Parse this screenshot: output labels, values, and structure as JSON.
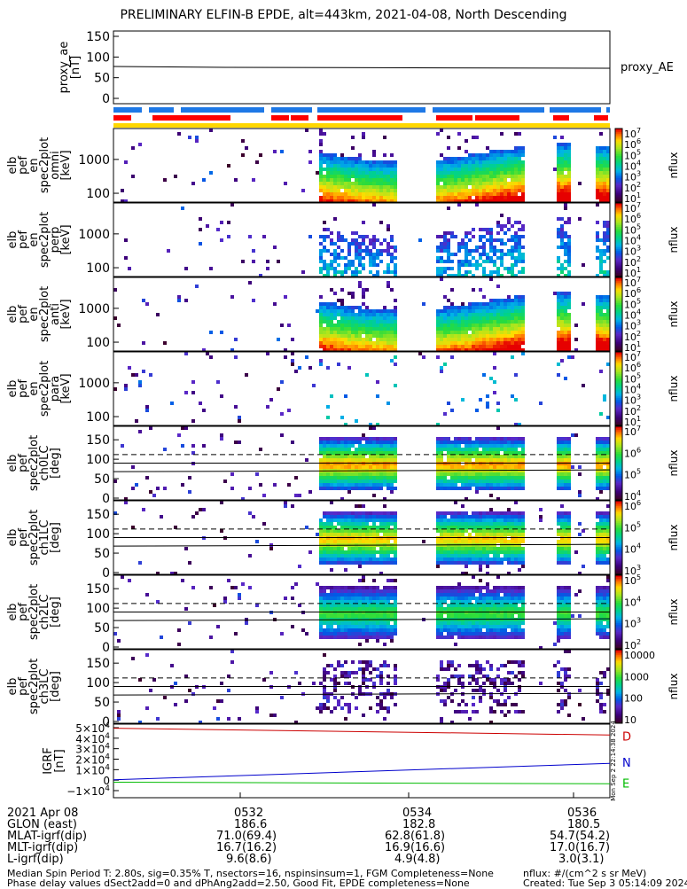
{
  "title": "PRELIMINARY ELFIN-B EPDE, alt=443km, 2021-04-08, North Descending",
  "proxy_ae": {
    "ylabel": [
      "proxy_ae",
      "[nT]"
    ],
    "yticks": [
      "150",
      "100",
      "50",
      "0"
    ],
    "legend": "proxy_AE",
    "value_nT": 75
  },
  "panels": [
    {
      "id": "p0",
      "ylabel": [
        "elb",
        "pef",
        "en",
        "spec2plot",
        "omni",
        "[keV]"
      ],
      "yticks": [
        "1000",
        "100"
      ],
      "kind": "energy",
      "variant": "omni",
      "cbar": {
        "label": "nflux",
        "ticks": [
          "10",
          "10",
          "10",
          "10",
          "10",
          "10",
          "10"
        ],
        "exps": [
          "7",
          "6",
          "5",
          "4",
          "3",
          "2",
          "1"
        ]
      }
    },
    {
      "id": "p1",
      "ylabel": [
        "elb",
        "pef",
        "en",
        "spec2plot",
        "perp",
        "[keV]"
      ],
      "yticks": [
        "1000",
        "100"
      ],
      "kind": "energy",
      "variant": "perp",
      "cbar": {
        "label": "nflux",
        "ticks": [
          "10",
          "10",
          "10",
          "10",
          "10",
          "10",
          "10"
        ],
        "exps": [
          "7",
          "6",
          "5",
          "4",
          "3",
          "2",
          "1"
        ]
      }
    },
    {
      "id": "p2",
      "ylabel": [
        "elb",
        "pef",
        "en",
        "spec2plot",
        "anti",
        "[keV]"
      ],
      "yticks": [
        "1000",
        "100"
      ],
      "kind": "energy",
      "variant": "anti",
      "cbar": {
        "label": "nflux",
        "ticks": [
          "10",
          "10",
          "10",
          "10",
          "10",
          "10",
          "10"
        ],
        "exps": [
          "7",
          "6",
          "5",
          "4",
          "3",
          "2",
          "1"
        ]
      }
    },
    {
      "id": "p3",
      "ylabel": [
        "elb",
        "pef",
        "en",
        "spec2plot",
        "para",
        "[keV]"
      ],
      "yticks": [
        "1000",
        "100"
      ],
      "kind": "energy",
      "variant": "para",
      "cbar": {
        "label": "nflux",
        "ticks": [
          "10",
          "10",
          "10",
          "10",
          "10",
          "10",
          "10"
        ],
        "exps": [
          "7",
          "6",
          "5",
          "4",
          "3",
          "2",
          "1"
        ]
      }
    },
    {
      "id": "p4",
      "ylabel": [
        "elb",
        "pef",
        "spec2plot",
        "ch0LC",
        "[deg]"
      ],
      "yticks": [
        "150",
        "100",
        "50",
        "0"
      ],
      "kind": "pitch",
      "variant": "ch0",
      "cbar": {
        "label": "nflux",
        "ticks": [
          "10",
          "10",
          "10",
          "10"
        ],
        "exps": [
          "7",
          "6",
          "5",
          "4"
        ]
      }
    },
    {
      "id": "p5",
      "ylabel": [
        "elb",
        "pef",
        "spec2plot",
        "ch1LC",
        "[deg]"
      ],
      "yticks": [
        "150",
        "100",
        "50",
        "0"
      ],
      "kind": "pitch",
      "variant": "ch1",
      "cbar": {
        "label": "nflux",
        "ticks": [
          "10",
          "10",
          "10",
          "10"
        ],
        "exps": [
          "6",
          "5",
          "4",
          "3"
        ]
      }
    },
    {
      "id": "p6",
      "ylabel": [
        "elb",
        "pef",
        "spec2plot",
        "ch2LC",
        "[deg]"
      ],
      "yticks": [
        "150",
        "100",
        "50",
        "0"
      ],
      "kind": "pitch",
      "variant": "ch2",
      "cbar": {
        "label": "nflux",
        "ticks": [
          "10",
          "10",
          "10",
          "10"
        ],
        "exps": [
          "5",
          "4",
          "3",
          "2"
        ]
      }
    },
    {
      "id": "p7",
      "ylabel": [
        "elb",
        "pef",
        "spec2plot",
        "ch3LC",
        "[deg]"
      ],
      "yticks": [
        "150",
        "100",
        "50",
        "0"
      ],
      "kind": "pitch",
      "variant": "ch3",
      "cbar": {
        "label": "nflux",
        "ticks": [
          "10000",
          "1000",
          "100",
          "10"
        ],
        "exps": [
          "",
          "",
          "",
          ""
        ]
      }
    }
  ],
  "igrf": {
    "ylabel": [
      "IGRF",
      "[nT]"
    ],
    "yticks": [
      "5×10",
      "4×10",
      "3×10",
      "2×10",
      "1×10",
      "0",
      "−1×10"
    ],
    "ytick_exps": [
      "4",
      "4",
      "4",
      "4",
      "4",
      "",
      "4"
    ],
    "labels": {
      "D": "D",
      "N": "N",
      "E": "E"
    },
    "colors": {
      "D": "#cc0000",
      "N": "#0000cc",
      "E": "#00bb00"
    },
    "side_note": "Mon Sep  2 22:14:38 2024"
  },
  "time_axis": {
    "ticks": [
      "0532",
      "0534",
      "0536"
    ],
    "rows": [
      {
        "label": "2021 Apr 08",
        "values": [
          "",
          "",
          ""
        ]
      },
      {
        "label": "GLON (east)",
        "values": [
          "186.6",
          "182.8",
          "180.5"
        ]
      },
      {
        "label": "MLAT-igrf(dip)",
        "values": [
          "71.0(69.4)",
          "62.8(61.8)",
          "54.7(54.2)"
        ]
      },
      {
        "label": "MLT-igrf(dip)",
        "values": [
          "16.7(16.2)",
          "16.9(16.6)",
          "17.0(16.7)"
        ]
      },
      {
        "label": "L-igrf(dip)",
        "values": [
          "9.6(8.6)",
          "4.9(4.8)",
          "3.0(3.1)"
        ]
      }
    ]
  },
  "footer": {
    "left1": "Median Spin Period T: 2.80s, sig=0.35% T, nsectors=16, nspinsinsum=1, FGM Completeness=None",
    "left2": "Phase delay values dSect2add=0 and dPhAng2add=2.50, Good Fit, EPDE completeness=None",
    "right1": "nflux: #/(cm^2 s sr MeV)",
    "right2": "Created: Tue Sep  3 05:14:09 2024"
  },
  "colors": {
    "bar_blue": "#1e78e6",
    "bar_red": "#ff0000",
    "bar_yellow": "#ffd700"
  }
}
